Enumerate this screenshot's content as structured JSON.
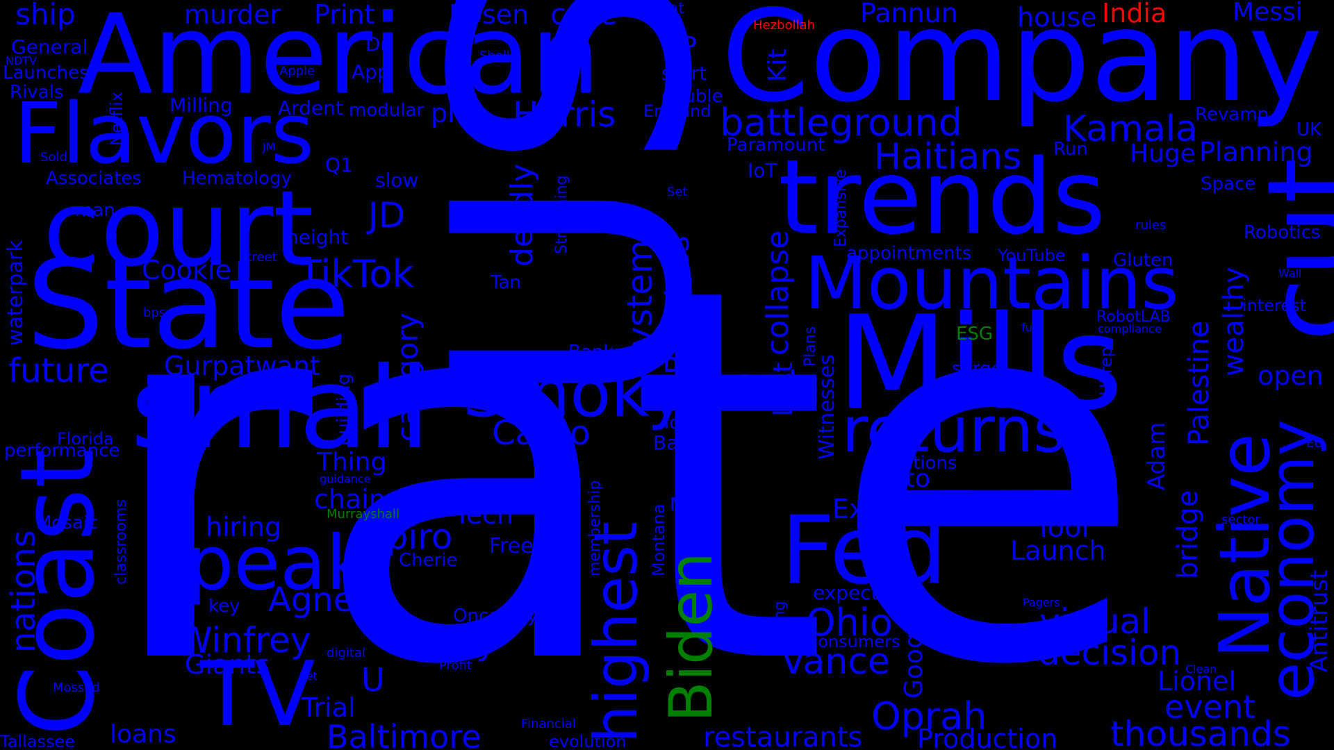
{
  "colors": {
    "background": "#000000",
    "blue": "#0000ff",
    "green": "#008000",
    "red": "#ff0000"
  },
  "words": [
    {
      "text": "rate",
      "color": "blue"
    },
    {
      "text": "US",
      "color": "blue"
    },
    {
      "text": "American",
      "color": "blue"
    },
    {
      "text": "Company",
      "color": "blue"
    },
    {
      "text": "State",
      "color": "blue"
    },
    {
      "text": "small",
      "color": "blue"
    },
    {
      "text": "Mills",
      "color": "blue"
    },
    {
      "text": "trends",
      "color": "blue"
    },
    {
      "text": "court",
      "color": "blue"
    },
    {
      "text": "Flavors",
      "color": "blue"
    },
    {
      "text": "Coast",
      "color": "blue"
    },
    {
      "text": "cut",
      "color": "blue"
    },
    {
      "text": "Fed",
      "color": "blue"
    },
    {
      "text": "peak",
      "color": "blue"
    },
    {
      "text": "TV",
      "color": "blue"
    },
    {
      "text": "Mountains",
      "color": "blue"
    },
    {
      "text": "Smoky",
      "color": "blue"
    },
    {
      "text": "Native",
      "color": "blue"
    },
    {
      "text": "returns",
      "color": "blue"
    },
    {
      "text": "economy",
      "color": "blue"
    },
    {
      "text": "highest",
      "color": "blue"
    },
    {
      "text": "Biden",
      "color": "green"
    },
    {
      "text": "battleground",
      "color": "blue"
    },
    {
      "text": "Kamala",
      "color": "blue"
    },
    {
      "text": "Harris",
      "color": "blue"
    },
    {
      "text": "Haitians",
      "color": "blue"
    },
    {
      "text": "TikTok",
      "color": "blue"
    },
    {
      "text": "JD",
      "color": "blue"
    },
    {
      "text": "Ohio",
      "color": "blue"
    },
    {
      "text": "Vance",
      "color": "blue"
    },
    {
      "text": "Oprah",
      "color": "blue"
    },
    {
      "text": "Winfrey",
      "color": "blue"
    },
    {
      "text": "Baltimore",
      "color": "blue"
    },
    {
      "text": "thousands",
      "color": "blue"
    },
    {
      "text": "restaurants",
      "color": "blue"
    },
    {
      "text": "Production",
      "color": "blue"
    },
    {
      "text": "decision",
      "color": "blue"
    },
    {
      "text": "virtual",
      "color": "blue"
    },
    {
      "text": "event",
      "color": "blue"
    },
    {
      "text": "Lionel",
      "color": "blue"
    },
    {
      "text": "Spiro",
      "color": "blue"
    },
    {
      "text": "Agnew",
      "color": "blue"
    },
    {
      "text": "Cargo",
      "color": "blue"
    },
    {
      "text": "city",
      "color": "blue"
    },
    {
      "text": "worst",
      "color": "blue"
    },
    {
      "text": "future",
      "color": "blue"
    },
    {
      "text": "Gurpatwant",
      "color": "blue"
    },
    {
      "text": "Cookie",
      "color": "blue"
    },
    {
      "text": "nations",
      "color": "blue"
    },
    {
      "text": "Pannun",
      "color": "blue"
    },
    {
      "text": "house",
      "color": "blue"
    },
    {
      "text": "India",
      "color": "red"
    },
    {
      "text": "Messi",
      "color": "blue"
    },
    {
      "text": "ship",
      "color": "blue"
    },
    {
      "text": "murder",
      "color": "blue"
    },
    {
      "text": "Print",
      "color": "blue"
    },
    {
      "text": "Rosen",
      "color": "blue"
    },
    {
      "text": "case",
      "color": "blue"
    },
    {
      "text": "meat",
      "color": "blue"
    },
    {
      "text": "Hezbollah",
      "color": "red"
    },
    {
      "text": "General",
      "color": "blue"
    },
    {
      "text": "NDTV",
      "color": "blue"
    },
    {
      "text": "Launches",
      "color": "blue"
    },
    {
      "text": "Rivals",
      "color": "blue"
    },
    {
      "text": "Netflix",
      "color": "blue"
    },
    {
      "text": "Apple",
      "color": "blue"
    },
    {
      "text": "Shell",
      "color": "blue"
    },
    {
      "text": "App",
      "color": "blue"
    },
    {
      "text": "Dr",
      "color": "blue"
    },
    {
      "text": "VP",
      "color": "blue"
    },
    {
      "text": "Kit",
      "color": "blue"
    },
    {
      "text": "start",
      "color": "blue"
    },
    {
      "text": "double",
      "color": "blue"
    },
    {
      "text": "England",
      "color": "blue"
    },
    {
      "text": "Milling",
      "color": "blue"
    },
    {
      "text": "Ardent",
      "color": "blue"
    },
    {
      "text": "modular",
      "color": "blue"
    },
    {
      "text": "plot",
      "color": "blue"
    },
    {
      "text": "Sold",
      "color": "blue"
    },
    {
      "text": "JM",
      "color": "blue"
    },
    {
      "text": "Associates",
      "color": "blue"
    },
    {
      "text": "Hematology",
      "color": "blue"
    },
    {
      "text": "Q1",
      "color": "blue"
    },
    {
      "text": "slow",
      "color": "blue"
    },
    {
      "text": "man",
      "color": "blue"
    },
    {
      "text": "height",
      "color": "blue"
    },
    {
      "text": "waterpark",
      "color": "blue"
    },
    {
      "text": "Street",
      "color": "blue"
    },
    {
      "text": "bps",
      "color": "blue"
    },
    {
      "text": "Streaming",
      "color": "blue"
    },
    {
      "text": "Live",
      "color": "blue"
    },
    {
      "text": "Set",
      "color": "blue"
    },
    {
      "text": "deadly",
      "color": "blue"
    },
    {
      "text": "Tan",
      "color": "blue"
    },
    {
      "text": "Paramount",
      "color": "blue"
    },
    {
      "text": "IoT",
      "color": "blue"
    },
    {
      "text": "Expansive",
      "color": "blue"
    },
    {
      "text": "collapse",
      "color": "blue"
    },
    {
      "text": "appointments",
      "color": "blue"
    },
    {
      "text": "YouTube",
      "color": "blue"
    },
    {
      "text": "Run",
      "color": "blue"
    },
    {
      "text": "Huge",
      "color": "blue"
    },
    {
      "text": "Planning",
      "color": "blue"
    },
    {
      "text": "Revamp",
      "color": "blue"
    },
    {
      "text": "UK",
      "color": "blue"
    },
    {
      "text": "Space",
      "color": "blue"
    },
    {
      "text": "rules",
      "color": "blue"
    },
    {
      "text": "Robotics",
      "color": "blue"
    },
    {
      "text": "Gluten",
      "color": "blue"
    },
    {
      "text": "wealthy",
      "color": "blue"
    },
    {
      "text": "Wall",
      "color": "blue"
    },
    {
      "text": "interest",
      "color": "blue"
    },
    {
      "text": "RobotLAB",
      "color": "blue"
    },
    {
      "text": "compliance",
      "color": "blue"
    },
    {
      "text": "fuel",
      "color": "blue"
    },
    {
      "text": "ESG",
      "color": "green"
    },
    {
      "text": "Plans",
      "color": "blue"
    },
    {
      "text": "Witnesses",
      "color": "blue"
    },
    {
      "text": "Lost",
      "color": "blue"
    },
    {
      "text": "Palestine",
      "color": "blue"
    },
    {
      "text": "open",
      "color": "blue"
    },
    {
      "text": "system",
      "color": "blue"
    },
    {
      "text": "Baseless",
      "color": "blue"
    },
    {
      "text": "category",
      "color": "blue"
    },
    {
      "text": "Bank",
      "color": "blue"
    },
    {
      "text": "commons",
      "color": "blue"
    },
    {
      "text": "surge",
      "color": "blue"
    },
    {
      "text": "UPrep",
      "color": "blue"
    },
    {
      "text": "local",
      "color": "blue"
    },
    {
      "text": "Bay",
      "color": "blue"
    },
    {
      "text": "Florida",
      "color": "blue"
    },
    {
      "text": "performance",
      "color": "blue"
    },
    {
      "text": "building",
      "color": "blue"
    },
    {
      "text": "Thing",
      "color": "blue"
    },
    {
      "text": "guidance",
      "color": "blue"
    },
    {
      "text": "Solutions",
      "color": "blue"
    },
    {
      "text": "Adam",
      "color": "blue"
    },
    {
      "text": "EU",
      "color": "blue"
    },
    {
      "text": "auto",
      "color": "blue"
    },
    {
      "text": "Rigged",
      "color": "blue"
    },
    {
      "text": "bridge",
      "color": "blue"
    },
    {
      "text": "chain",
      "color": "blue"
    },
    {
      "text": "Murrayshall",
      "color": "green"
    },
    {
      "text": "Tech",
      "color": "blue"
    },
    {
      "text": "Mosaic",
      "color": "blue"
    },
    {
      "text": "classrooms",
      "color": "blue"
    },
    {
      "text": "hiring",
      "color": "blue"
    },
    {
      "text": "Exit",
      "color": "blue"
    },
    {
      "text": "Major",
      "color": "blue"
    },
    {
      "text": "Montana",
      "color": "blue"
    },
    {
      "text": "membership",
      "color": "blue"
    },
    {
      "text": "Tool",
      "color": "blue"
    },
    {
      "text": "Launch",
      "color": "blue"
    },
    {
      "text": "sector",
      "color": "blue"
    },
    {
      "text": "Antitrust",
      "color": "blue"
    },
    {
      "text": "Free",
      "color": "blue"
    },
    {
      "text": "Cherie",
      "color": "blue"
    },
    {
      "text": "Going",
      "color": "blue"
    },
    {
      "text": "expected",
      "color": "blue"
    },
    {
      "text": "Pagers",
      "color": "blue"
    },
    {
      "text": "key",
      "color": "blue"
    },
    {
      "text": "Oncology",
      "color": "blue"
    },
    {
      "text": "Google",
      "color": "blue"
    },
    {
      "text": "consumers",
      "color": "blue"
    },
    {
      "text": "Giants",
      "color": "blue"
    },
    {
      "text": "digital",
      "color": "blue"
    },
    {
      "text": "Profit",
      "color": "blue"
    },
    {
      "text": "U",
      "color": "blue"
    },
    {
      "text": "Mossad",
      "color": "blue"
    },
    {
      "text": "jet",
      "color": "blue"
    },
    {
      "text": "Clean",
      "color": "blue"
    },
    {
      "text": "Trial",
      "color": "blue"
    },
    {
      "text": "Financial",
      "color": "blue"
    },
    {
      "text": "loans",
      "color": "blue"
    },
    {
      "text": "Tallassee",
      "color": "blue"
    },
    {
      "text": "evolution",
      "color": "blue"
    }
  ]
}
